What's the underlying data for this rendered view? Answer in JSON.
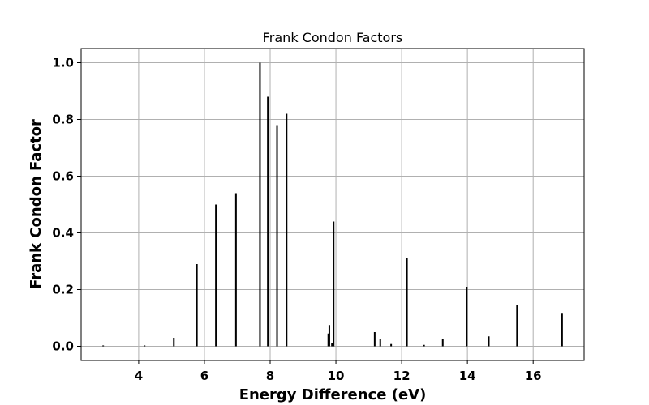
{
  "chart_data": {
    "type": "bar",
    "title": "Frank Condon Factors",
    "xlabel": "Energy Difference (eV)",
    "ylabel": "Frank Condon Factor",
    "xlim": [
      2.25,
      17.55
    ],
    "ylim": [
      -0.05,
      1.05
    ],
    "xticks": [
      4,
      6,
      8,
      10,
      12,
      14,
      16
    ],
    "yticks": [
      0.0,
      0.2,
      0.4,
      0.6,
      0.8,
      1.0
    ],
    "xtick_labels": [
      "4",
      "6",
      "8",
      "10",
      "12",
      "14",
      "16"
    ],
    "ytick_labels": [
      "0.0",
      "0.2",
      "0.4",
      "0.6",
      "0.8",
      "1.0"
    ],
    "grid": true,
    "bar_color": "#000000",
    "x": [
      2.92,
      4.18,
      5.07,
      5.77,
      6.35,
      6.96,
      7.69,
      7.93,
      8.21,
      8.5,
      9.77,
      9.8,
      9.88,
      9.93,
      11.18,
      11.35,
      11.68,
      12.16,
      12.68,
      13.25,
      13.98,
      14.65,
      15.51,
      16.88
    ],
    "values": [
      0.003,
      0.003,
      0.03,
      0.29,
      0.5,
      0.54,
      1.0,
      0.88,
      0.78,
      0.82,
      0.045,
      0.075,
      0.01,
      0.44,
      0.05,
      0.025,
      0.008,
      0.31,
      0.005,
      0.025,
      0.21,
      0.035,
      0.145,
      0.115
    ]
  }
}
